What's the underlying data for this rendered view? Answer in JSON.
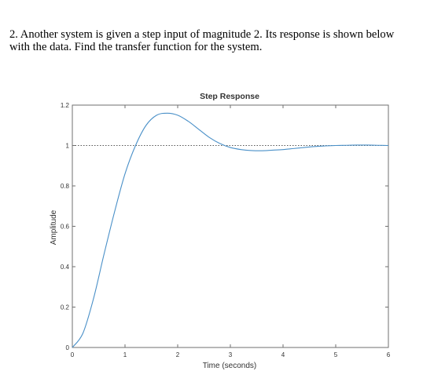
{
  "problem": {
    "line1": "2.  Another system is given a step input of magnitude 2.  Its response is shown below",
    "line2": "with the data.  Find the transfer function for the system."
  },
  "chart_data": {
    "type": "line",
    "title": "Step Response",
    "xlabel": "Time (seconds)",
    "ylabel": "Amplitude",
    "xlim": [
      0,
      6
    ],
    "ylim": [
      0,
      1.2
    ],
    "xticks": [
      "0",
      "1",
      "2",
      "3",
      "4",
      "5",
      "6"
    ],
    "yticks": [
      "0",
      "0.2",
      "0.4",
      "0.6",
      "0.8",
      "1",
      "1.2"
    ],
    "reference_line": {
      "y": 1,
      "style": "dotted"
    },
    "line_color": "#4a90c8",
    "grid": false,
    "series": [
      {
        "x": [
          0,
          0.2,
          0.4,
          0.6,
          0.8,
          1.0,
          1.2,
          1.4,
          1.6,
          1.8,
          2.0,
          2.2,
          2.4,
          2.6,
          2.8,
          3.0,
          3.2,
          3.4,
          3.6,
          3.8,
          4.0,
          4.2,
          4.4,
          4.6,
          4.8,
          5.0,
          5.2,
          5.4,
          5.6,
          5.8,
          6.0
        ],
        "y": [
          0,
          0.07,
          0.24,
          0.46,
          0.67,
          0.86,
          1.0,
          1.1,
          1.15,
          1.16,
          1.15,
          1.12,
          1.08,
          1.04,
          1.01,
          0.99,
          0.98,
          0.975,
          0.974,
          0.977,
          0.98,
          0.985,
          0.99,
          0.995,
          0.998,
          1.0,
          1.001,
          1.002,
          1.002,
          1.001,
          1.0
        ]
      }
    ]
  }
}
